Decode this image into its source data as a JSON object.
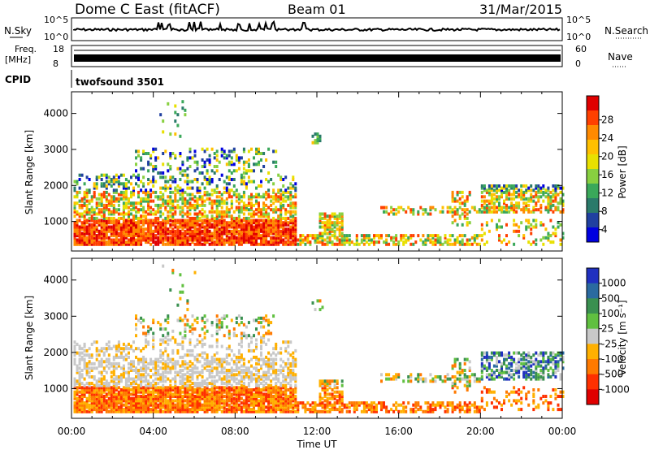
{
  "header": {
    "title": "Dome C East (fitACF)",
    "beam": "Beam 01",
    "date": "31/Mar/2015"
  },
  "top_panels": {
    "nsky": {
      "label": "N.Sky",
      "right_label": "N.Search",
      "left_ticks": [
        "10^5",
        "10^0"
      ],
      "right_ticks": [
        "10^5",
        "10^0"
      ]
    },
    "freq": {
      "label_line1": "Freq.",
      "label_line2": "[MHz]",
      "left_ticks": [
        "18",
        "8"
      ],
      "right_label": "Nave",
      "right_ticks": [
        "60",
        "0"
      ]
    },
    "cpid": {
      "label": "CPID",
      "program": "twofsound 3501"
    }
  },
  "x_axis": {
    "label": "Time UT",
    "ticks": [
      "00:00",
      "04:00",
      "08:00",
      "12:00",
      "16:00",
      "20:00",
      "00:00"
    ]
  },
  "chart_data": [
    {
      "type": "heatmap",
      "panel": "power",
      "ylabel": "Slant Range [km]",
      "y_ticks": [
        1000,
        2000,
        3000,
        4000
      ],
      "ylim": [
        180,
        4600
      ],
      "xlim_hours": [
        0,
        24
      ],
      "colorbar": {
        "label": "Power [dB]",
        "ticks": [
          "28",
          "24",
          "20",
          "16",
          "12",
          "8",
          "4"
        ],
        "colors": [
          "#e00000",
          "#ff4000",
          "#ff8a00",
          "#ffc000",
          "#e8e000",
          "#88d040",
          "#3aa85a",
          "#2a7a6a",
          "#2040a0",
          "#0000e0"
        ]
      }
    },
    {
      "type": "heatmap",
      "panel": "velocity",
      "ylabel": "Slant Range [km]",
      "y_ticks": [
        1000,
        2000,
        3000,
        4000
      ],
      "ylim": [
        180,
        4600
      ],
      "xlim_hours": [
        0,
        24
      ],
      "colorbar": {
        "label": "Velocity [m s⁻¹]",
        "ticks": [
          "1000",
          "500",
          "100",
          "25",
          "-25",
          "-100",
          "-500",
          "-1000"
        ],
        "colors": [
          "#2030c0",
          "#2a6aa0",
          "#3a9050",
          "#60c040",
          "#c8c8c8",
          "#ffb000",
          "#ff7a00",
          "#ff3000",
          "#e00000"
        ]
      }
    }
  ]
}
